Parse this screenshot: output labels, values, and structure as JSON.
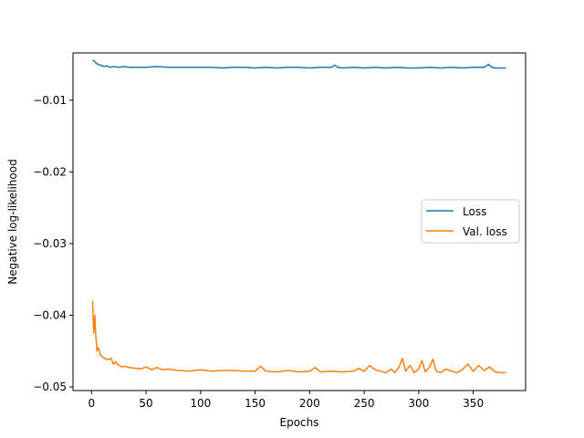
{
  "chart_data": {
    "type": "line",
    "title": "",
    "xlabel": "Epochs",
    "ylabel": "Negative log-likelihood",
    "xlim": [
      -17,
      398
    ],
    "ylim": [
      -0.0505,
      -0.0034
    ],
    "xticks": [
      0,
      50,
      100,
      150,
      200,
      250,
      300,
      350
    ],
    "xtick_labels": [
      "0",
      "50",
      "100",
      "150",
      "200",
      "250",
      "300",
      "350"
    ],
    "yticks": [
      -0.01,
      -0.02,
      -0.03,
      -0.04,
      -0.05
    ],
    "ytick_labels": [
      "−0.01",
      "−0.02",
      "−0.03",
      "−0.04",
      "−0.05"
    ],
    "grid": false,
    "legend_position": "center-right",
    "series": [
      {
        "name": "Loss",
        "color": "#1f77b4",
        "x": [
          1,
          2,
          3,
          4,
          5,
          6,
          8,
          10,
          12,
          14,
          17,
          20,
          25,
          30,
          35,
          40,
          50,
          60,
          70,
          80,
          90,
          100,
          110,
          120,
          130,
          140,
          150,
          160,
          170,
          180,
          190,
          200,
          210,
          220,
          223,
          226,
          230,
          240,
          250,
          260,
          270,
          280,
          290,
          300,
          310,
          320,
          330,
          340,
          350,
          360,
          364,
          367,
          370,
          380
        ],
        "y": [
          -0.0044,
          -0.0045,
          -0.0046,
          -0.0048,
          -0.0049,
          -0.005,
          -0.0051,
          -0.0052,
          -0.0053,
          -0.0052,
          -0.0054,
          -0.0053,
          -0.0054,
          -0.0053,
          -0.0054,
          -0.0054,
          -0.0054,
          -0.0053,
          -0.0054,
          -0.0054,
          -0.0054,
          -0.0054,
          -0.0054,
          -0.0055,
          -0.0054,
          -0.0054,
          -0.0055,
          -0.0054,
          -0.0055,
          -0.0054,
          -0.0054,
          -0.0055,
          -0.0054,
          -0.0054,
          -0.0051,
          -0.0054,
          -0.0055,
          -0.0054,
          -0.0055,
          -0.0054,
          -0.0055,
          -0.0054,
          -0.0055,
          -0.0055,
          -0.0054,
          -0.0055,
          -0.0054,
          -0.0055,
          -0.0054,
          -0.0054,
          -0.005,
          -0.0054,
          -0.0055,
          -0.0055
        ]
      },
      {
        "name": "Val. loss",
        "color": "#ff7f0e",
        "x": [
          1,
          2,
          3,
          4,
          5,
          6,
          7,
          8,
          10,
          12,
          15,
          18,
          20,
          22,
          25,
          28,
          30,
          35,
          40,
          45,
          50,
          55,
          60,
          65,
          70,
          80,
          90,
          100,
          110,
          120,
          130,
          140,
          150,
          155,
          160,
          170,
          180,
          190,
          200,
          205,
          210,
          220,
          230,
          240,
          245,
          250,
          255,
          260,
          265,
          270,
          275,
          278,
          282,
          285,
          288,
          292,
          296,
          300,
          303,
          306,
          310,
          313,
          316,
          320,
          325,
          330,
          335,
          340,
          345,
          350,
          355,
          360,
          365,
          370,
          375,
          380
        ],
        "y": [
          -0.038,
          -0.0425,
          -0.04,
          -0.043,
          -0.045,
          -0.0445,
          -0.0448,
          -0.0455,
          -0.0458,
          -0.046,
          -0.0462,
          -0.046,
          -0.0468,
          -0.0465,
          -0.047,
          -0.0472,
          -0.0471,
          -0.0473,
          -0.0474,
          -0.0475,
          -0.0472,
          -0.0476,
          -0.0473,
          -0.0476,
          -0.0475,
          -0.0477,
          -0.0478,
          -0.0476,
          -0.0478,
          -0.0477,
          -0.0477,
          -0.0478,
          -0.0478,
          -0.0471,
          -0.0478,
          -0.0479,
          -0.0477,
          -0.0479,
          -0.0478,
          -0.0473,
          -0.0479,
          -0.0478,
          -0.0479,
          -0.0478,
          -0.0474,
          -0.0478,
          -0.047,
          -0.0476,
          -0.0478,
          -0.048,
          -0.0475,
          -0.048,
          -0.0472,
          -0.046,
          -0.0478,
          -0.047,
          -0.048,
          -0.0475,
          -0.0463,
          -0.0479,
          -0.0472,
          -0.0461,
          -0.0478,
          -0.048,
          -0.0475,
          -0.0478,
          -0.048,
          -0.0476,
          -0.0468,
          -0.0478,
          -0.047,
          -0.0477,
          -0.0472,
          -0.0479,
          -0.048,
          -0.048
        ]
      }
    ]
  }
}
